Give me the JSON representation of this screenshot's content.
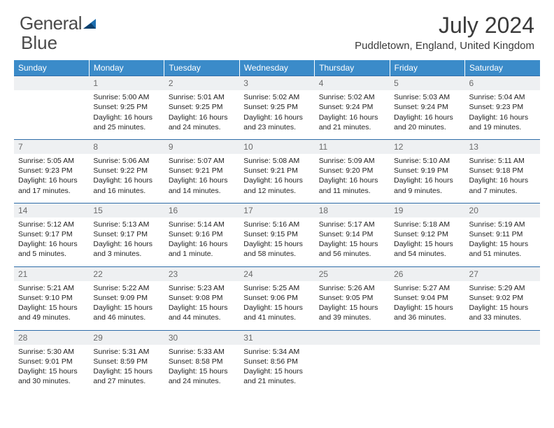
{
  "logo": {
    "word1": "General",
    "word2": "Blue"
  },
  "colors": {
    "header_bg": "#3b8bc9",
    "header_text": "#ffffff",
    "daynum_bg": "#eef0f2",
    "daynum_text": "#6a6a6a",
    "border": "#2e6ca8",
    "logo_blue": "#1e6fb0",
    "body_text": "#222222",
    "title_text": "#3a3a3a"
  },
  "title": "July 2024",
  "location": "Puddletown, England, United Kingdom",
  "weekdays": [
    "Sunday",
    "Monday",
    "Tuesday",
    "Wednesday",
    "Thursday",
    "Friday",
    "Saturday"
  ],
  "weeks": [
    [
      {
        "n": "",
        "lines": []
      },
      {
        "n": "1",
        "lines": [
          "Sunrise: 5:00 AM",
          "Sunset: 9:25 PM",
          "Daylight: 16 hours",
          "and 25 minutes."
        ]
      },
      {
        "n": "2",
        "lines": [
          "Sunrise: 5:01 AM",
          "Sunset: 9:25 PM",
          "Daylight: 16 hours",
          "and 24 minutes."
        ]
      },
      {
        "n": "3",
        "lines": [
          "Sunrise: 5:02 AM",
          "Sunset: 9:25 PM",
          "Daylight: 16 hours",
          "and 23 minutes."
        ]
      },
      {
        "n": "4",
        "lines": [
          "Sunrise: 5:02 AM",
          "Sunset: 9:24 PM",
          "Daylight: 16 hours",
          "and 21 minutes."
        ]
      },
      {
        "n": "5",
        "lines": [
          "Sunrise: 5:03 AM",
          "Sunset: 9:24 PM",
          "Daylight: 16 hours",
          "and 20 minutes."
        ]
      },
      {
        "n": "6",
        "lines": [
          "Sunrise: 5:04 AM",
          "Sunset: 9:23 PM",
          "Daylight: 16 hours",
          "and 19 minutes."
        ]
      }
    ],
    [
      {
        "n": "7",
        "lines": [
          "Sunrise: 5:05 AM",
          "Sunset: 9:23 PM",
          "Daylight: 16 hours",
          "and 17 minutes."
        ]
      },
      {
        "n": "8",
        "lines": [
          "Sunrise: 5:06 AM",
          "Sunset: 9:22 PM",
          "Daylight: 16 hours",
          "and 16 minutes."
        ]
      },
      {
        "n": "9",
        "lines": [
          "Sunrise: 5:07 AM",
          "Sunset: 9:21 PM",
          "Daylight: 16 hours",
          "and 14 minutes."
        ]
      },
      {
        "n": "10",
        "lines": [
          "Sunrise: 5:08 AM",
          "Sunset: 9:21 PM",
          "Daylight: 16 hours",
          "and 12 minutes."
        ]
      },
      {
        "n": "11",
        "lines": [
          "Sunrise: 5:09 AM",
          "Sunset: 9:20 PM",
          "Daylight: 16 hours",
          "and 11 minutes."
        ]
      },
      {
        "n": "12",
        "lines": [
          "Sunrise: 5:10 AM",
          "Sunset: 9:19 PM",
          "Daylight: 16 hours",
          "and 9 minutes."
        ]
      },
      {
        "n": "13",
        "lines": [
          "Sunrise: 5:11 AM",
          "Sunset: 9:18 PM",
          "Daylight: 16 hours",
          "and 7 minutes."
        ]
      }
    ],
    [
      {
        "n": "14",
        "lines": [
          "Sunrise: 5:12 AM",
          "Sunset: 9:17 PM",
          "Daylight: 16 hours",
          "and 5 minutes."
        ]
      },
      {
        "n": "15",
        "lines": [
          "Sunrise: 5:13 AM",
          "Sunset: 9:17 PM",
          "Daylight: 16 hours",
          "and 3 minutes."
        ]
      },
      {
        "n": "16",
        "lines": [
          "Sunrise: 5:14 AM",
          "Sunset: 9:16 PM",
          "Daylight: 16 hours",
          "and 1 minute."
        ]
      },
      {
        "n": "17",
        "lines": [
          "Sunrise: 5:16 AM",
          "Sunset: 9:15 PM",
          "Daylight: 15 hours",
          "and 58 minutes."
        ]
      },
      {
        "n": "18",
        "lines": [
          "Sunrise: 5:17 AM",
          "Sunset: 9:14 PM",
          "Daylight: 15 hours",
          "and 56 minutes."
        ]
      },
      {
        "n": "19",
        "lines": [
          "Sunrise: 5:18 AM",
          "Sunset: 9:12 PM",
          "Daylight: 15 hours",
          "and 54 minutes."
        ]
      },
      {
        "n": "20",
        "lines": [
          "Sunrise: 5:19 AM",
          "Sunset: 9:11 PM",
          "Daylight: 15 hours",
          "and 51 minutes."
        ]
      }
    ],
    [
      {
        "n": "21",
        "lines": [
          "Sunrise: 5:21 AM",
          "Sunset: 9:10 PM",
          "Daylight: 15 hours",
          "and 49 minutes."
        ]
      },
      {
        "n": "22",
        "lines": [
          "Sunrise: 5:22 AM",
          "Sunset: 9:09 PM",
          "Daylight: 15 hours",
          "and 46 minutes."
        ]
      },
      {
        "n": "23",
        "lines": [
          "Sunrise: 5:23 AM",
          "Sunset: 9:08 PM",
          "Daylight: 15 hours",
          "and 44 minutes."
        ]
      },
      {
        "n": "24",
        "lines": [
          "Sunrise: 5:25 AM",
          "Sunset: 9:06 PM",
          "Daylight: 15 hours",
          "and 41 minutes."
        ]
      },
      {
        "n": "25",
        "lines": [
          "Sunrise: 5:26 AM",
          "Sunset: 9:05 PM",
          "Daylight: 15 hours",
          "and 39 minutes."
        ]
      },
      {
        "n": "26",
        "lines": [
          "Sunrise: 5:27 AM",
          "Sunset: 9:04 PM",
          "Daylight: 15 hours",
          "and 36 minutes."
        ]
      },
      {
        "n": "27",
        "lines": [
          "Sunrise: 5:29 AM",
          "Sunset: 9:02 PM",
          "Daylight: 15 hours",
          "and 33 minutes."
        ]
      }
    ],
    [
      {
        "n": "28",
        "lines": [
          "Sunrise: 5:30 AM",
          "Sunset: 9:01 PM",
          "Daylight: 15 hours",
          "and 30 minutes."
        ]
      },
      {
        "n": "29",
        "lines": [
          "Sunrise: 5:31 AM",
          "Sunset: 8:59 PM",
          "Daylight: 15 hours",
          "and 27 minutes."
        ]
      },
      {
        "n": "30",
        "lines": [
          "Sunrise: 5:33 AM",
          "Sunset: 8:58 PM",
          "Daylight: 15 hours",
          "and 24 minutes."
        ]
      },
      {
        "n": "31",
        "lines": [
          "Sunrise: 5:34 AM",
          "Sunset: 8:56 PM",
          "Daylight: 15 hours",
          "and 21 minutes."
        ]
      },
      {
        "n": "",
        "lines": []
      },
      {
        "n": "",
        "lines": []
      },
      {
        "n": "",
        "lines": []
      }
    ]
  ]
}
